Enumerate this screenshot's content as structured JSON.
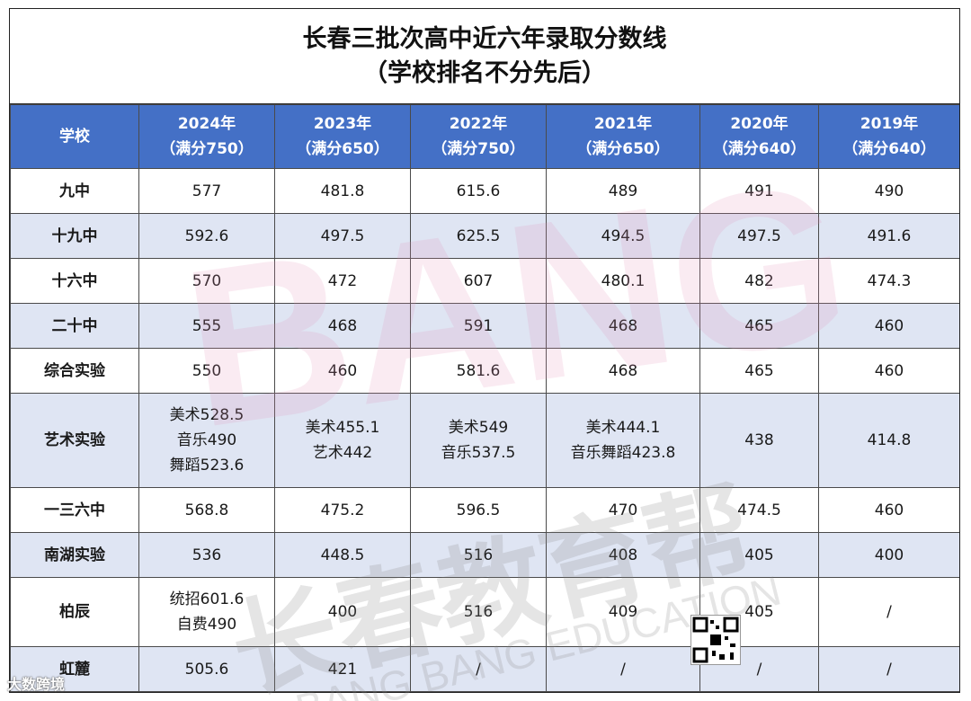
{
  "title": {
    "line1": "长春三批次高中近六年录取分数线",
    "line2": "（学校排名不分先后）"
  },
  "header": {
    "school": "学校",
    "years": [
      {
        "year": "2024年",
        "full": "（满分750）"
      },
      {
        "year": "2023年",
        "full": "（满分650）"
      },
      {
        "year": "2022年",
        "full": "（满分750）"
      },
      {
        "year": "2021年",
        "full": "（满分650）"
      },
      {
        "year": "2020年",
        "full": "（满分640）"
      },
      {
        "year": "2019年",
        "full": "（满分640）"
      }
    ]
  },
  "rows": [
    {
      "school": "九中",
      "v": [
        [
          "577"
        ],
        [
          "481.8"
        ],
        [
          "615.6"
        ],
        [
          "489"
        ],
        [
          "491"
        ],
        [
          "490"
        ]
      ]
    },
    {
      "school": "十九中",
      "v": [
        [
          "592.6"
        ],
        [
          "497.5"
        ],
        [
          "625.5"
        ],
        [
          "494.5"
        ],
        [
          "497.5"
        ],
        [
          "491.6"
        ]
      ]
    },
    {
      "school": "十六中",
      "v": [
        [
          "570"
        ],
        [
          "472"
        ],
        [
          "607"
        ],
        [
          "480.1"
        ],
        [
          "482"
        ],
        [
          "474.3"
        ]
      ]
    },
    {
      "school": "二十中",
      "v": [
        [
          "555"
        ],
        [
          "468"
        ],
        [
          "591"
        ],
        [
          "468"
        ],
        [
          "465"
        ],
        [
          "460"
        ]
      ]
    },
    {
      "school": "综合实验",
      "v": [
        [
          "550"
        ],
        [
          "460"
        ],
        [
          "581.6"
        ],
        [
          "468"
        ],
        [
          "465"
        ],
        [
          "460"
        ]
      ]
    },
    {
      "school": "艺术实验",
      "v": [
        [
          "美术528.5",
          "音乐490",
          "舞蹈523.6"
        ],
        [
          "美术455.1",
          "艺术442"
        ],
        [
          "美术549",
          "音乐537.5"
        ],
        [
          "美术444.1",
          "音乐舞蹈423.8"
        ],
        [
          "438"
        ],
        [
          "414.8"
        ]
      ]
    },
    {
      "school": "一三六中",
      "v": [
        [
          "568.8"
        ],
        [
          "475.2"
        ],
        [
          "596.5"
        ],
        [
          "470"
        ],
        [
          "474.5"
        ],
        [
          "460"
        ]
      ]
    },
    {
      "school": "南湖实验",
      "v": [
        [
          "536"
        ],
        [
          "448.5"
        ],
        [
          "516"
        ],
        [
          "408"
        ],
        [
          "405"
        ],
        [
          "400"
        ]
      ]
    },
    {
      "school": "柏辰",
      "v": [
        [
          "统招601.6",
          "自费490"
        ],
        [
          "400"
        ],
        [
          "516"
        ],
        [
          "409"
        ],
        [
          "405"
        ],
        [
          "/"
        ]
      ]
    },
    {
      "school": "虹麓",
      "v": [
        [
          "505.6"
        ],
        [
          "421"
        ],
        [
          "/"
        ],
        [
          "/"
        ],
        [
          "/"
        ],
        [
          "/"
        ]
      ]
    }
  ],
  "watermark": {
    "big": "BANG",
    "cn": "长春教育帮",
    "en": "BANG BANG EDUCATION"
  },
  "footer_logo": "大数跨境",
  "colors": {
    "header_bg": "#4470c6",
    "stripe": "#dfe5f3"
  }
}
